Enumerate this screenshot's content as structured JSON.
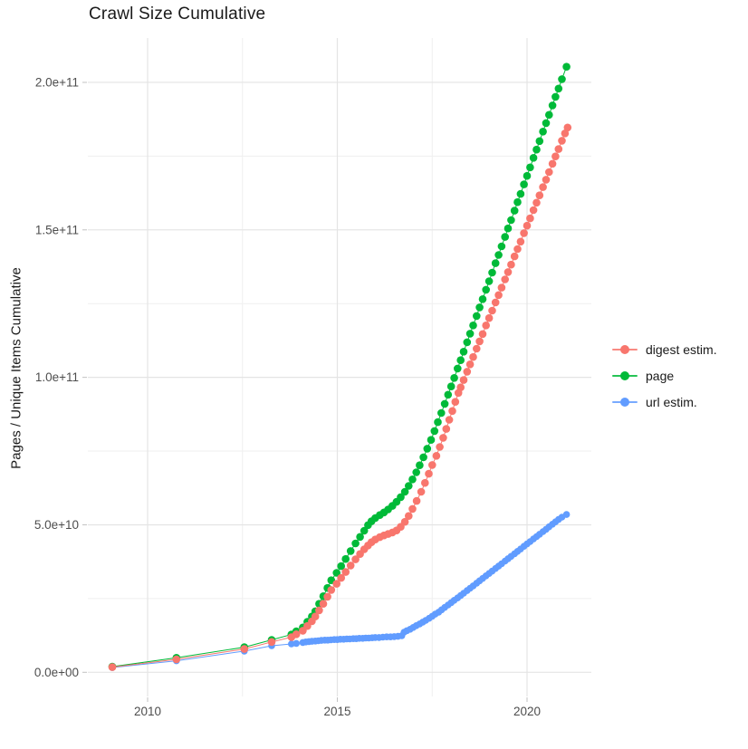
{
  "title": "Crawl Size Cumulative",
  "legend": {
    "position": "right",
    "items": [
      {
        "label": "digest estim.",
        "color": "#F8766D"
      },
      {
        "label": "page",
        "color": "#00BA38"
      },
      {
        "label": "url estim.",
        "color": "#619CFF"
      }
    ]
  },
  "colors": {
    "background": "#ffffff",
    "grid_major": "#e4e4e4",
    "grid_minor": "#efefef",
    "tick_mark": "#c2c2c2",
    "tick_label": "#4d4d4d",
    "title_text": "#1a1a1a"
  },
  "chart_data": {
    "type": "line",
    "title": "Crawl Size Cumulative",
    "xlabel": "",
    "ylabel": "Pages / Unique Items Cumulative",
    "value_unit": "1e9 (values below are billions; axis shows scientific notation)",
    "grid": true,
    "legend_position": "right",
    "xlim": [
      2008.4,
      2021.7
    ],
    "ylim": [
      -8,
      215
    ],
    "x_ticks": [
      {
        "v": 2010,
        "label": "2010"
      },
      {
        "v": 2015,
        "label": "2015"
      },
      {
        "v": 2020,
        "label": "2020"
      }
    ],
    "x_minor": [
      2012.5,
      2017.5
    ],
    "y_ticks": [
      {
        "v": 0,
        "label": "0.0e+00"
      },
      {
        "v": 50,
        "label": "5.0e+10"
      },
      {
        "v": 100,
        "label": "1.0e+11"
      },
      {
        "v": 150,
        "label": "1.5e+11"
      },
      {
        "v": 200,
        "label": "2.0e+11"
      }
    ],
    "y_minor": [
      25,
      75,
      125,
      175
    ],
    "series": [
      {
        "name": "digest estim.",
        "color": "#F8766D",
        "points": [
          [
            2009.07,
            1.75
          ],
          [
            2010.76,
            4.4
          ],
          [
            2012.55,
            7.9
          ],
          [
            2013.27,
            10.3
          ],
          [
            2013.79,
            11.9
          ],
          [
            2013.92,
            12.9
          ],
          [
            2014.09,
            14.1
          ],
          [
            2014.21,
            15.7
          ],
          [
            2014.33,
            17.3
          ],
          [
            2014.42,
            18.9
          ],
          [
            2014.52,
            21.0
          ],
          [
            2014.63,
            23.2
          ],
          [
            2014.74,
            25.6
          ],
          [
            2014.84,
            27.9
          ],
          [
            2014.98,
            30.0
          ],
          [
            2015.1,
            32.0
          ],
          [
            2015.22,
            34.0
          ],
          [
            2015.35,
            36.2
          ],
          [
            2015.48,
            38.3
          ],
          [
            2015.6,
            40.1
          ],
          [
            2015.71,
            41.7
          ],
          [
            2015.81,
            43.0
          ],
          [
            2015.9,
            44.1
          ],
          [
            2016.0,
            45.0
          ],
          [
            2016.12,
            45.8
          ],
          [
            2016.23,
            46.4
          ],
          [
            2016.34,
            46.9
          ],
          [
            2016.45,
            47.4
          ],
          [
            2016.56,
            48.1
          ],
          [
            2016.67,
            49.3
          ],
          [
            2016.78,
            51.0
          ],
          [
            2016.88,
            53.0
          ],
          [
            2016.98,
            55.4
          ],
          [
            2017.09,
            58.1
          ],
          [
            2017.21,
            61.2
          ],
          [
            2017.31,
            64.2
          ],
          [
            2017.41,
            67.3
          ],
          [
            2017.5,
            70.3
          ],
          [
            2017.61,
            73.4
          ],
          [
            2017.7,
            76.4
          ],
          [
            2017.79,
            79.5
          ],
          [
            2017.87,
            82.5
          ],
          [
            2017.95,
            85.6
          ],
          [
            2018.03,
            88.6
          ],
          [
            2018.11,
            91.7
          ],
          [
            2018.19,
            94.7
          ],
          [
            2018.25,
            96.6
          ],
          [
            2018.33,
            99.1
          ],
          [
            2018.42,
            101.9
          ],
          [
            2018.5,
            104.4
          ],
          [
            2018.58,
            106.9
          ],
          [
            2018.67,
            109.7
          ],
          [
            2018.75,
            112.2
          ],
          [
            2018.83,
            114.7
          ],
          [
            2018.92,
            117.6
          ],
          [
            2019.0,
            120.1
          ],
          [
            2019.08,
            122.6
          ],
          [
            2019.17,
            125.4
          ],
          [
            2019.25,
            127.9
          ],
          [
            2019.33,
            130.4
          ],
          [
            2019.42,
            133.2
          ],
          [
            2019.5,
            135.7
          ],
          [
            2019.58,
            138.2
          ],
          [
            2019.67,
            141.0
          ],
          [
            2019.75,
            143.5
          ],
          [
            2019.83,
            146.0
          ],
          [
            2019.92,
            148.9
          ],
          [
            2020.0,
            151.4
          ],
          [
            2020.08,
            153.9
          ],
          [
            2020.17,
            156.7
          ],
          [
            2020.25,
            159.2
          ],
          [
            2020.33,
            161.7
          ],
          [
            2020.42,
            164.5
          ],
          [
            2020.5,
            167.0
          ],
          [
            2020.58,
            169.6
          ],
          [
            2020.67,
            172.4
          ],
          [
            2020.75,
            174.9
          ],
          [
            2020.83,
            177.4
          ],
          [
            2020.92,
            180.2
          ],
          [
            2021.0,
            182.7
          ],
          [
            2021.07,
            184.7
          ]
        ]
      },
      {
        "name": "page",
        "color": "#00BA38",
        "points": [
          [
            2009.07,
            1.9
          ],
          [
            2010.76,
            4.9
          ],
          [
            2012.55,
            8.5
          ],
          [
            2013.27,
            11.0
          ],
          [
            2013.79,
            12.8
          ],
          [
            2013.92,
            13.9
          ],
          [
            2014.09,
            15.2
          ],
          [
            2014.21,
            17.1
          ],
          [
            2014.33,
            18.9
          ],
          [
            2014.42,
            20.7
          ],
          [
            2014.52,
            23.2
          ],
          [
            2014.63,
            25.8
          ],
          [
            2014.74,
            28.6
          ],
          [
            2014.84,
            31.2
          ],
          [
            2014.98,
            33.7
          ],
          [
            2015.1,
            36.0
          ],
          [
            2015.22,
            38.4
          ],
          [
            2015.35,
            41.1
          ],
          [
            2015.48,
            43.7
          ],
          [
            2015.6,
            45.9
          ],
          [
            2015.71,
            48.0
          ],
          [
            2015.81,
            49.9
          ],
          [
            2015.9,
            51.2
          ],
          [
            2016.0,
            52.3
          ],
          [
            2016.12,
            53.3
          ],
          [
            2016.23,
            54.2
          ],
          [
            2016.34,
            55.2
          ],
          [
            2016.45,
            56.4
          ],
          [
            2016.56,
            57.8
          ],
          [
            2016.67,
            59.4
          ],
          [
            2016.78,
            61.2
          ],
          [
            2016.88,
            63.2
          ],
          [
            2016.98,
            65.4
          ],
          [
            2017.08,
            67.8
          ],
          [
            2017.17,
            70.2
          ],
          [
            2017.27,
            72.9
          ],
          [
            2017.37,
            75.8
          ],
          [
            2017.47,
            78.8
          ],
          [
            2017.56,
            81.8
          ],
          [
            2017.65,
            84.8
          ],
          [
            2017.74,
            87.9
          ],
          [
            2017.83,
            91.0
          ],
          [
            2017.92,
            94.1
          ],
          [
            2018.0,
            96.9
          ],
          [
            2018.08,
            99.8
          ],
          [
            2018.17,
            103.0
          ],
          [
            2018.25,
            105.8
          ],
          [
            2018.33,
            108.7
          ],
          [
            2018.42,
            111.9
          ],
          [
            2018.5,
            114.8
          ],
          [
            2018.58,
            117.6
          ],
          [
            2018.67,
            120.8
          ],
          [
            2018.75,
            123.7
          ],
          [
            2018.83,
            126.5
          ],
          [
            2018.92,
            129.7
          ],
          [
            2019.0,
            132.6
          ],
          [
            2019.08,
            135.5
          ],
          [
            2019.17,
            138.7
          ],
          [
            2019.25,
            141.5
          ],
          [
            2019.33,
            144.4
          ],
          [
            2019.42,
            147.6
          ],
          [
            2019.5,
            150.5
          ],
          [
            2019.58,
            153.3
          ],
          [
            2019.67,
            156.5
          ],
          [
            2019.75,
            159.4
          ],
          [
            2019.83,
            162.2
          ],
          [
            2019.92,
            165.4
          ],
          [
            2020.0,
            168.3
          ],
          [
            2020.08,
            171.2
          ],
          [
            2020.17,
            174.4
          ],
          [
            2020.25,
            177.2
          ],
          [
            2020.33,
            180.1
          ],
          [
            2020.42,
            183.3
          ],
          [
            2020.5,
            186.2
          ],
          [
            2020.58,
            189.0
          ],
          [
            2020.67,
            192.2
          ],
          [
            2020.75,
            195.1
          ],
          [
            2020.83,
            197.9
          ],
          [
            2020.92,
            201.1
          ],
          [
            2021.04,
            205.3
          ]
        ]
      },
      {
        "name": "url estim.",
        "color": "#619CFF",
        "points": [
          [
            2009.07,
            1.6
          ],
          [
            2010.76,
            3.9
          ],
          [
            2012.55,
            7.2
          ],
          [
            2013.27,
            9.0
          ],
          [
            2013.79,
            9.6
          ],
          [
            2013.92,
            9.8
          ],
          [
            2014.09,
            10.1
          ],
          [
            2014.17,
            10.3
          ],
          [
            2014.25,
            10.4
          ],
          [
            2014.33,
            10.5
          ],
          [
            2014.42,
            10.6
          ],
          [
            2014.5,
            10.7
          ],
          [
            2014.58,
            10.8
          ],
          [
            2014.67,
            10.9
          ],
          [
            2014.75,
            10.9
          ],
          [
            2014.83,
            11.0
          ],
          [
            2014.92,
            11.1
          ],
          [
            2015.0,
            11.1
          ],
          [
            2015.08,
            11.2
          ],
          [
            2015.17,
            11.2
          ],
          [
            2015.25,
            11.3
          ],
          [
            2015.33,
            11.3
          ],
          [
            2015.42,
            11.4
          ],
          [
            2015.5,
            11.4
          ],
          [
            2015.58,
            11.5
          ],
          [
            2015.67,
            11.5
          ],
          [
            2015.75,
            11.6
          ],
          [
            2015.83,
            11.6
          ],
          [
            2015.92,
            11.7
          ],
          [
            2016.0,
            11.8
          ],
          [
            2016.1,
            11.8
          ],
          [
            2016.2,
            11.9
          ],
          [
            2016.3,
            12.0
          ],
          [
            2016.4,
            12.0
          ],
          [
            2016.5,
            12.1
          ],
          [
            2016.6,
            12.2
          ],
          [
            2016.7,
            12.4
          ],
          [
            2016.76,
            13.6
          ],
          [
            2016.83,
            14.1
          ],
          [
            2016.92,
            14.6
          ],
          [
            2017.0,
            15.2
          ],
          [
            2017.08,
            15.8
          ],
          [
            2017.17,
            16.4
          ],
          [
            2017.25,
            17.0
          ],
          [
            2017.33,
            17.6
          ],
          [
            2017.42,
            18.3
          ],
          [
            2017.5,
            19.0
          ],
          [
            2017.58,
            19.7
          ],
          [
            2017.67,
            20.4
          ],
          [
            2017.75,
            21.2
          ],
          [
            2017.83,
            22.0
          ],
          [
            2017.92,
            22.8
          ],
          [
            2018.0,
            23.6
          ],
          [
            2018.08,
            24.4
          ],
          [
            2018.17,
            25.2
          ],
          [
            2018.25,
            26.0
          ],
          [
            2018.33,
            26.8
          ],
          [
            2018.42,
            27.7
          ],
          [
            2018.5,
            28.5
          ],
          [
            2018.58,
            29.3
          ],
          [
            2018.67,
            30.2
          ],
          [
            2018.75,
            31.0
          ],
          [
            2018.83,
            31.8
          ],
          [
            2018.92,
            32.7
          ],
          [
            2019.0,
            33.5
          ],
          [
            2019.08,
            34.3
          ],
          [
            2019.17,
            35.2
          ],
          [
            2019.25,
            36.0
          ],
          [
            2019.33,
            36.8
          ],
          [
            2019.42,
            37.7
          ],
          [
            2019.5,
            38.5
          ],
          [
            2019.58,
            39.3
          ],
          [
            2019.67,
            40.2
          ],
          [
            2019.75,
            41.0
          ],
          [
            2019.83,
            41.8
          ],
          [
            2019.92,
            42.7
          ],
          [
            2020.0,
            43.5
          ],
          [
            2020.08,
            44.3
          ],
          [
            2020.17,
            45.2
          ],
          [
            2020.25,
            46.0
          ],
          [
            2020.33,
            46.8
          ],
          [
            2020.42,
            47.7
          ],
          [
            2020.5,
            48.5
          ],
          [
            2020.58,
            49.3
          ],
          [
            2020.67,
            50.2
          ],
          [
            2020.75,
            51.0
          ],
          [
            2020.83,
            51.8
          ],
          [
            2020.92,
            52.6
          ],
          [
            2021.04,
            53.5
          ]
        ]
      }
    ]
  }
}
